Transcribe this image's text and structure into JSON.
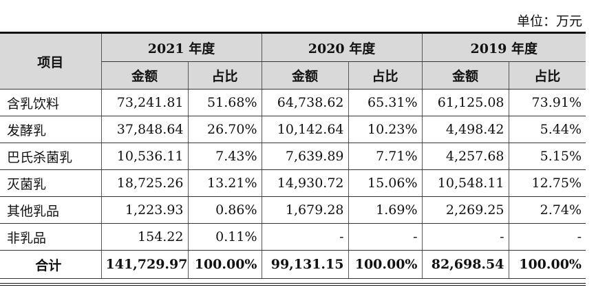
{
  "unit_label": "单位：万元",
  "header": {
    "item": "项目",
    "years": [
      "2021 年度",
      "2020 年度",
      "2019 年度"
    ],
    "amount": "金额",
    "ratio": "占比"
  },
  "rows": [
    {
      "name": "含乳饮料",
      "values": [
        "73,241.81",
        "51.68%",
        "64,738.62",
        "65.31%",
        "61,125.08",
        "73.91%"
      ]
    },
    {
      "name": "发酵乳",
      "values": [
        "37,848.64",
        "26.70%",
        "10,142.64",
        "10.23%",
        "4,498.42",
        "5.44%"
      ]
    },
    {
      "name": "巴氏杀菌乳",
      "values": [
        "10,536.11",
        "7.43%",
        "7,639.89",
        "7.71%",
        "4,257.68",
        "5.15%"
      ]
    },
    {
      "name": "灭菌乳",
      "values": [
        "18,725.26",
        "13.21%",
        "14,930.72",
        "15.06%",
        "10,548.11",
        "12.75%"
      ]
    },
    {
      "name": "其他乳品",
      "values": [
        "1,223.93",
        "0.86%",
        "1,679.28",
        "1.69%",
        "2,269.25",
        "2.74%"
      ]
    },
    {
      "name": "非乳品",
      "values": [
        "154.22",
        "0.11%",
        "-",
        "-",
        "-",
        "-"
      ]
    }
  ],
  "total": {
    "name": "合计",
    "values": [
      "141,729.97",
      "100.00%",
      "99,131.15",
      "100.00%",
      "82,698.54",
      "100.00%"
    ]
  }
}
